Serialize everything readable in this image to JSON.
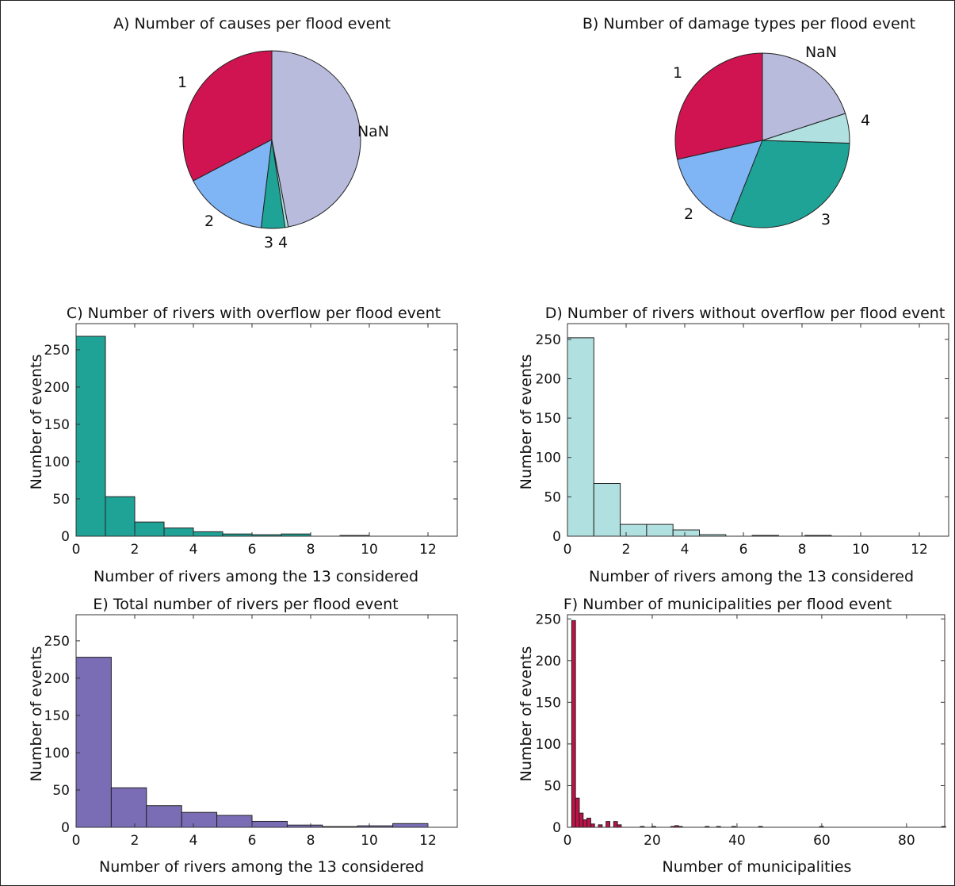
{
  "chart_data": [
    {
      "type": "pie",
      "title": "A) Number of causes per flood event",
      "start": "top",
      "direction": "counterclockwise",
      "slices": [
        {
          "label": "1",
          "value": 34,
          "color": "#d01351"
        },
        {
          "label": "2",
          "value": 16,
          "color": "#7fb4f5"
        },
        {
          "label": "3",
          "value": 4.5,
          "color": "#1ea396"
        },
        {
          "label": "4",
          "value": 0.6,
          "color": "#b0e0df"
        },
        {
          "label": "NaN",
          "value": 48.9,
          "color": "#b8bbdc"
        }
      ]
    },
    {
      "type": "pie",
      "title": "B) Number of damage types per flood event",
      "start": "top",
      "direction": "counterclockwise",
      "slices": [
        {
          "label": "1",
          "value": 28.5,
          "color": "#d01351"
        },
        {
          "label": "2",
          "value": 15.5,
          "color": "#7fb4f5"
        },
        {
          "label": "3",
          "value": 30.5,
          "color": "#1ea396"
        },
        {
          "label": "4",
          "value": 5.5,
          "color": "#b0e0df"
        },
        {
          "label": "NaN",
          "value": 20,
          "color": "#b8bbdc"
        }
      ]
    },
    {
      "type": "bar",
      "title": "C) Number of rivers with overflow per flood event",
      "xlabel": "Number of rivers among the 13 considered",
      "ylabel": "Number of events",
      "xlim": [
        0,
        13
      ],
      "ylim": [
        0,
        285
      ],
      "xticks": [
        0,
        2,
        4,
        6,
        8,
        10,
        12
      ],
      "yticks": [
        0,
        50,
        100,
        150,
        200,
        250
      ],
      "color": "#1ea396",
      "bin_edges": [
        0,
        1,
        2,
        3,
        4,
        5,
        6,
        7,
        8,
        9,
        10
      ],
      "values": [
        268,
        53,
        19,
        11,
        6,
        3,
        2,
        3,
        0,
        1
      ]
    },
    {
      "type": "bar",
      "title": "D) Number of rivers without overflow per flood event",
      "xlabel": "Number of rivers among the 13 considered",
      "ylabel": "Number of events",
      "xlim": [
        0,
        13
      ],
      "ylim": [
        0,
        270
      ],
      "xticks": [
        0,
        2,
        4,
        6,
        8,
        10,
        12
      ],
      "yticks": [
        0,
        50,
        100,
        150,
        200,
        250
      ],
      "color": "#b0e0df",
      "bin_edges": [
        0,
        0.9,
        1.8,
        2.7,
        3.6,
        4.5,
        5.4,
        6.3,
        7.2,
        8.1,
        9.0
      ],
      "values": [
        252,
        67,
        15,
        15,
        8,
        2,
        0,
        1,
        0,
        1
      ]
    },
    {
      "type": "bar",
      "title": "E) Total number of rivers per flood event",
      "xlabel": "Number of rivers among the 13 considered",
      "ylabel": "Number of events",
      "xlim": [
        0,
        13
      ],
      "ylim": [
        0,
        285
      ],
      "xticks": [
        0,
        2,
        4,
        6,
        8,
        10,
        12
      ],
      "yticks": [
        0,
        50,
        100,
        150,
        200,
        250
      ],
      "color": "#7a6db6",
      "bin_edges": [
        0,
        1.2,
        2.4,
        3.6,
        4.8,
        6.0,
        7.2,
        8.4,
        9.6,
        10.8,
        12.0
      ],
      "values": [
        228,
        53,
        29,
        20,
        16,
        8,
        3,
        1,
        2,
        5
      ]
    },
    {
      "type": "bar",
      "title": "F) Number of municipalities per flood event",
      "xlabel": "Number of municipalities",
      "ylabel": "Number of events",
      "xlim": [
        0,
        89
      ],
      "ylim": [
        0,
        255
      ],
      "xticks": [
        0,
        20,
        40,
        60,
        80
      ],
      "yticks": [
        0,
        50,
        100,
        150,
        200,
        250
      ],
      "color": "#c01148",
      "bin_width": 0.9,
      "bin_starts": [
        1,
        1.9,
        2.8,
        3.7,
        4.6,
        5.5,
        7.3,
        9.1,
        10.9,
        11.8,
        17.2,
        19.9,
        24.4,
        25.3,
        26.2,
        32.5,
        35.2,
        38.8,
        45.1,
        59.5,
        88.3
      ],
      "values": [
        248,
        35,
        17,
        9,
        11,
        4,
        3,
        7,
        7,
        3,
        1,
        1,
        1,
        2,
        1,
        1,
        1,
        1,
        1,
        1,
        1
      ]
    }
  ]
}
